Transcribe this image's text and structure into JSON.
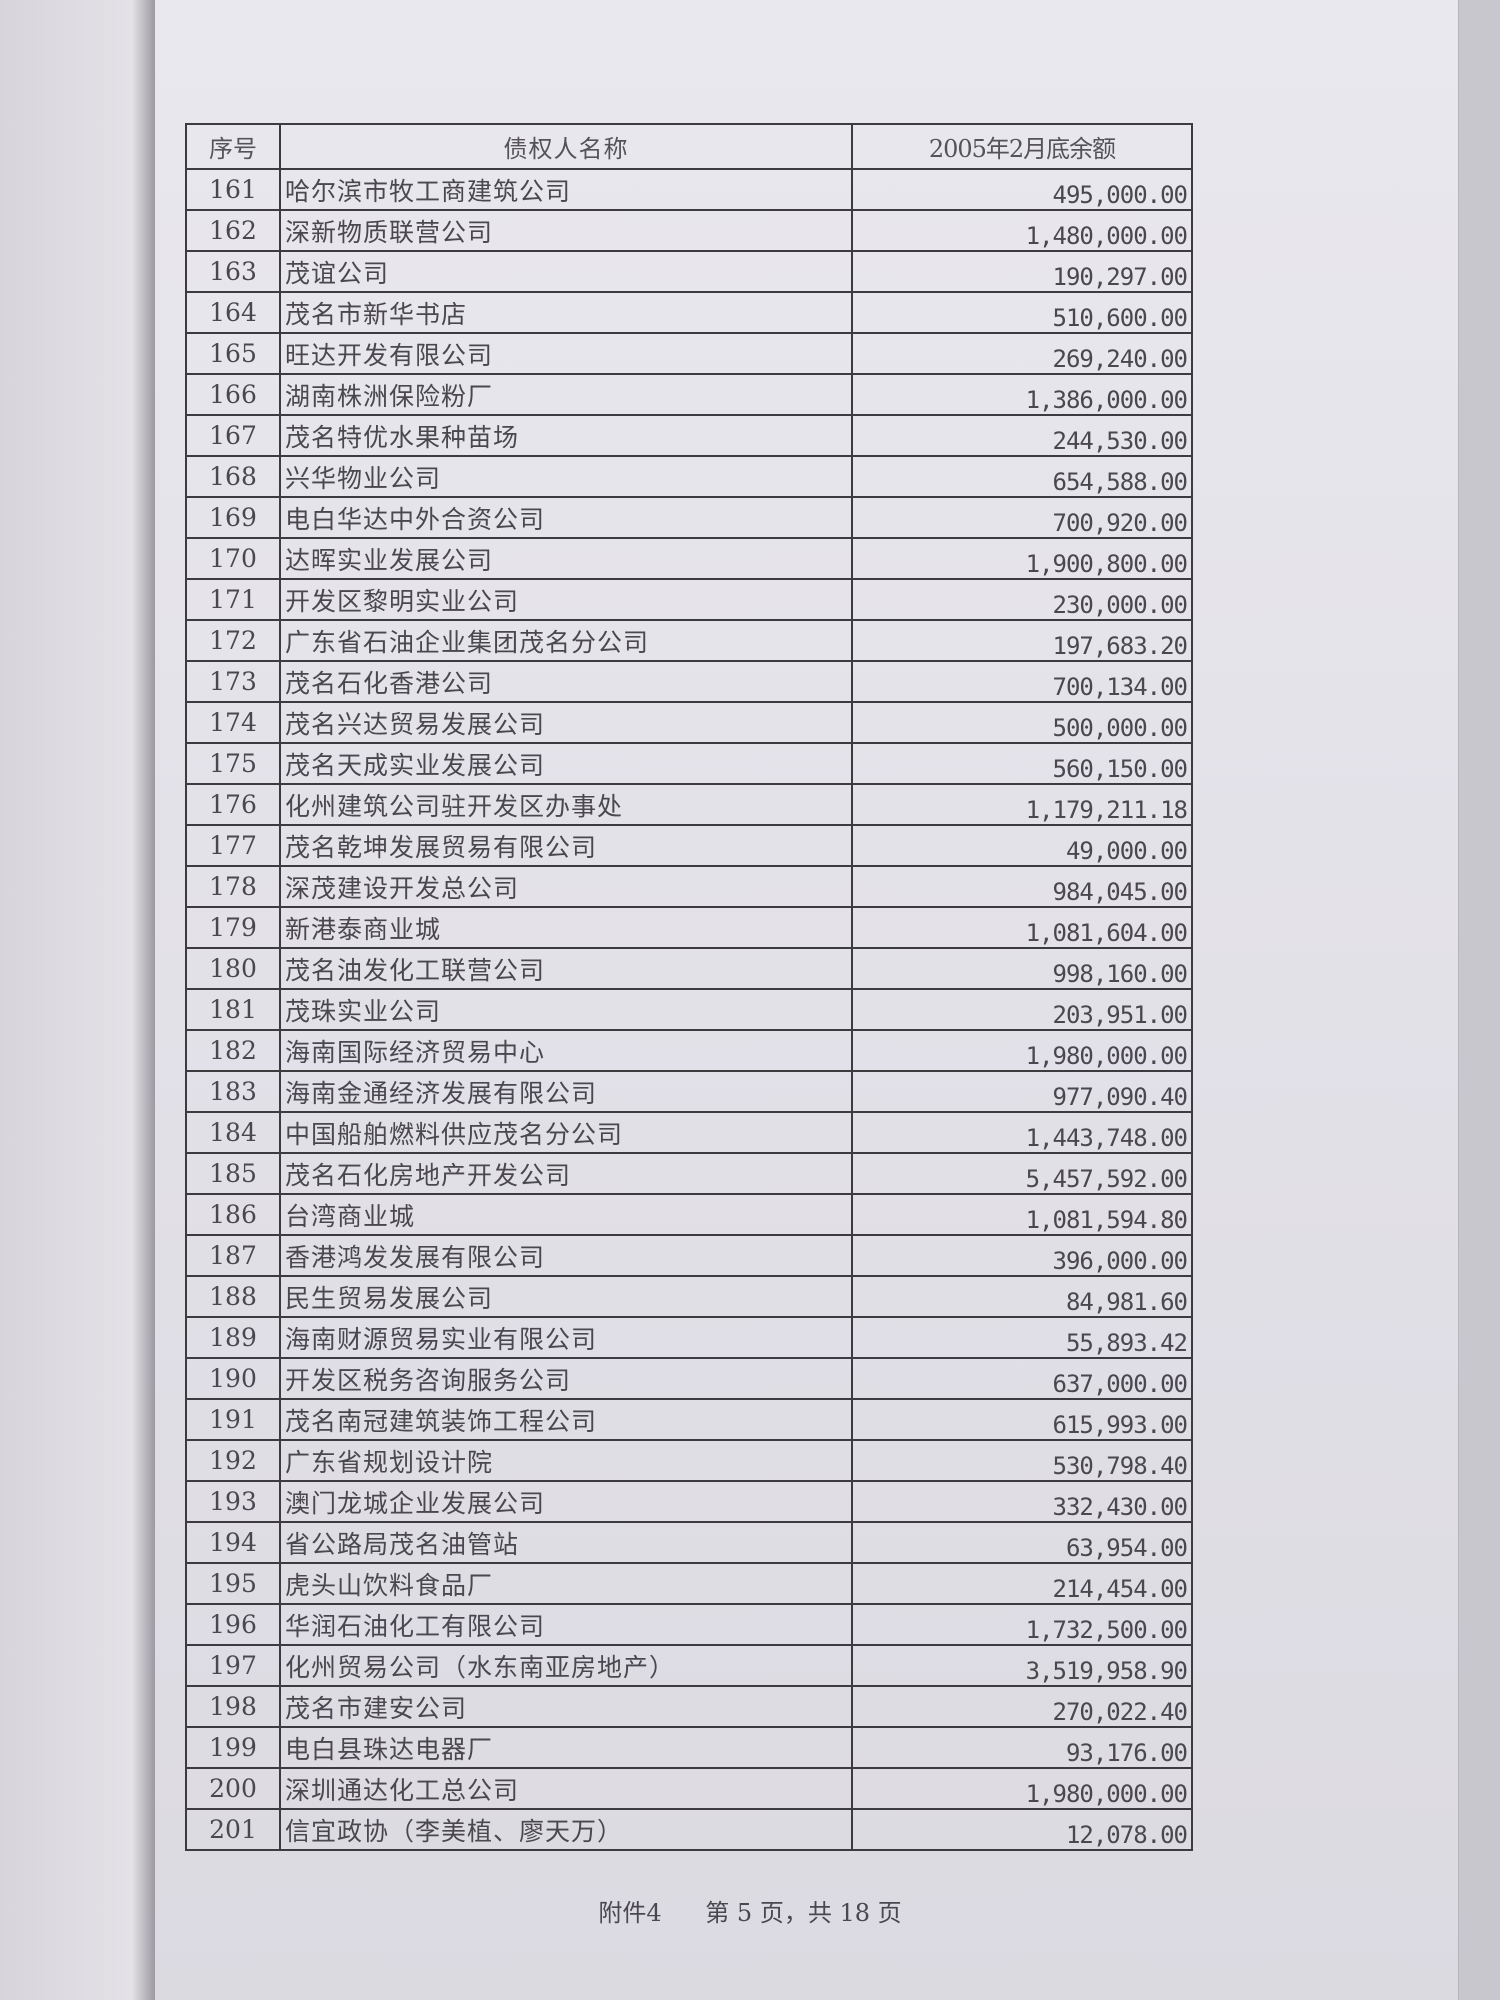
{
  "table": {
    "headers": [
      "序号",
      "债权人名称",
      "2005年2月底余额"
    ],
    "rows": [
      [
        "161",
        "哈尔滨市牧工商建筑公司",
        "495,000.00"
      ],
      [
        "162",
        "深新物质联营公司",
        "1,480,000.00"
      ],
      [
        "163",
        "茂谊公司",
        "190,297.00"
      ],
      [
        "164",
        "茂名市新华书店",
        "510,600.00"
      ],
      [
        "165",
        "旺达开发有限公司",
        "269,240.00"
      ],
      [
        "166",
        "湖南株洲保险粉厂",
        "1,386,000.00"
      ],
      [
        "167",
        "茂名特优水果种苗场",
        "244,530.00"
      ],
      [
        "168",
        "兴华物业公司",
        "654,588.00"
      ],
      [
        "169",
        "电白华达中外合资公司",
        "700,920.00"
      ],
      [
        "170",
        "达晖实业发展公司",
        "1,900,800.00"
      ],
      [
        "171",
        "开发区黎明实业公司",
        "230,000.00"
      ],
      [
        "172",
        "广东省石油企业集团茂名分公司",
        "197,683.20"
      ],
      [
        "173",
        "茂名石化香港公司",
        "700,134.00"
      ],
      [
        "174",
        "茂名兴达贸易发展公司",
        "500,000.00"
      ],
      [
        "175",
        "茂名天成实业发展公司",
        "560,150.00"
      ],
      [
        "176",
        "化州建筑公司驻开发区办事处",
        "1,179,211.18"
      ],
      [
        "177",
        "茂名乾坤发展贸易有限公司",
        "49,000.00"
      ],
      [
        "178",
        "深茂建设开发总公司",
        "984,045.00"
      ],
      [
        "179",
        "新港泰商业城",
        "1,081,604.00"
      ],
      [
        "180",
        "茂名油发化工联营公司",
        "998,160.00"
      ],
      [
        "181",
        "茂珠实业公司",
        "203,951.00"
      ],
      [
        "182",
        "海南国际经济贸易中心",
        "1,980,000.00"
      ],
      [
        "183",
        "海南金通经济发展有限公司",
        "977,090.40"
      ],
      [
        "184",
        "中国船舶燃料供应茂名分公司",
        "1,443,748.00"
      ],
      [
        "185",
        "茂名石化房地产开发公司",
        "5,457,592.00"
      ],
      [
        "186",
        "台湾商业城",
        "1,081,594.80"
      ],
      [
        "187",
        "香港鸿发发展有限公司",
        "396,000.00"
      ],
      [
        "188",
        "民生贸易发展公司",
        "84,981.60"
      ],
      [
        "189",
        "海南财源贸易实业有限公司",
        "55,893.42"
      ],
      [
        "190",
        "开发区税务咨询服务公司",
        "637,000.00"
      ],
      [
        "191",
        "茂名南冠建筑装饰工程公司",
        "615,993.00"
      ],
      [
        "192",
        "广东省规划设计院",
        "530,798.40"
      ],
      [
        "193",
        "澳门龙城企业发展公司",
        "332,430.00"
      ],
      [
        "194",
        "省公路局茂名油管站",
        "63,954.00"
      ],
      [
        "195",
        "虎头山饮料食品厂",
        "214,454.00"
      ],
      [
        "196",
        "华润石油化工有限公司",
        "1,732,500.00"
      ],
      [
        "197",
        "化州贸易公司（水东南亚房地产）",
        "3,519,958.90"
      ],
      [
        "198",
        "茂名市建安公司",
        "270,022.40"
      ],
      [
        "199",
        "电白县珠达电器厂",
        "93,176.00"
      ],
      [
        "200",
        "深圳通达化工总公司",
        "1,980,000.00"
      ],
      [
        "201",
        "信宜政协（李美植、廖天万）",
        "12,078.00"
      ]
    ]
  },
  "footer": {
    "attachment": "附件4",
    "page_info": "第 5 页，共 18 页"
  }
}
